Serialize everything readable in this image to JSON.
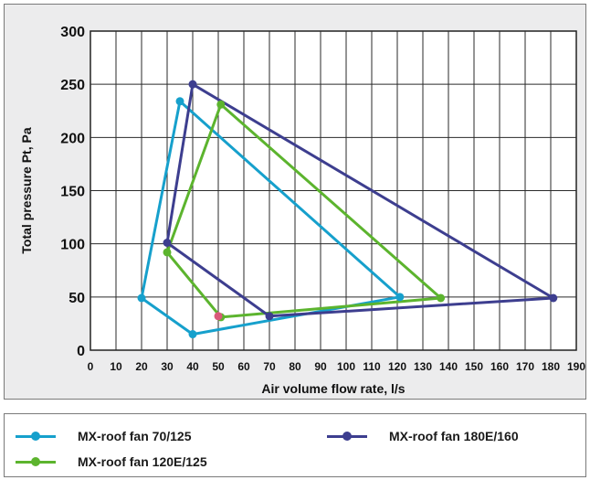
{
  "chart_data": {
    "type": "line",
    "xlabel": "Air volume flow rate, l/s",
    "ylabel": "Total pressure Pt, Pa",
    "xlim": [
      0,
      190
    ],
    "ylim": [
      0,
      300
    ],
    "x_ticks": [
      "0",
      "10",
      "20",
      "30",
      "40",
      "50",
      "60",
      "70",
      "80",
      "90",
      "100",
      "110",
      "120",
      "130",
      "140",
      "150",
      "160",
      "170",
      "180",
      "190"
    ],
    "y_ticks": [
      "0",
      "50",
      "100",
      "150",
      "200",
      "250",
      "300"
    ],
    "grid": true,
    "legend_position": "bottom",
    "series": [
      {
        "name": "MX-roof fan 70/125",
        "color": "#16a0cc",
        "points": [
          [
            20,
            49
          ],
          [
            35,
            234
          ],
          [
            121,
            50
          ],
          [
            40,
            15
          ],
          [
            20,
            49
          ]
        ]
      },
      {
        "name": "MX-roof fan 120E/125",
        "color": "#5cb42e",
        "points": [
          [
            30,
            92
          ],
          [
            51,
            231
          ],
          [
            137,
            49
          ],
          [
            51,
            31
          ],
          [
            30,
            92
          ]
        ]
      },
      {
        "name": "MX-roof fan 180E/160",
        "color": "#3d3e8f",
        "points": [
          [
            30,
            101
          ],
          [
            40,
            250
          ],
          [
            181,
            49
          ],
          [
            70,
            32
          ],
          [
            30,
            101
          ],
          [
            40,
            250
          ]
        ]
      }
    ],
    "marker_highlight": {
      "x": 50,
      "y": 32,
      "color": "#d9597a"
    }
  },
  "legend": {
    "items": [
      {
        "label": "MX-roof fan 70/125",
        "color": "#16a0cc"
      },
      {
        "label": "MX-roof fan 180E/160",
        "color": "#3d3e8f"
      },
      {
        "label": "MX-roof fan 120E/125",
        "color": "#5cb42e"
      }
    ]
  }
}
